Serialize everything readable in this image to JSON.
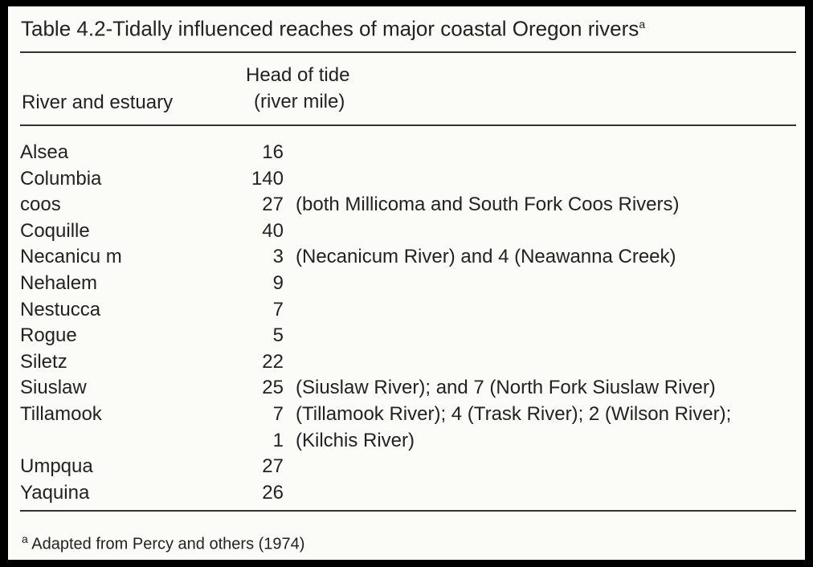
{
  "title": {
    "text": "Table 4.2-Tidally influenced reaches of major coastal Oregon rivers",
    "footnote_marker": "a"
  },
  "table": {
    "header": {
      "river": "River and estuary",
      "head_of_tide": [
        "Head of tide",
        "(river mile)"
      ]
    },
    "rows": [
      {
        "river": "Alsea",
        "mile": 16
      },
      {
        "river": "Columbia",
        "mile": 140
      },
      {
        "river": "coos",
        "mile": 27,
        "note": "(both Millicoma and South Fork Coos Rivers)"
      },
      {
        "river": "Coquille",
        "mile": 40
      },
      {
        "river": "Necanicu m",
        "mile": 3,
        "note": "(Necanicum River) and 4 (Neawanna Creek)"
      },
      {
        "river": "Nehalem",
        "mile": 9
      },
      {
        "river": "Nestucca",
        "mile": 7
      },
      {
        "river": "Rogue",
        "mile": 5
      },
      {
        "river": "Siletz",
        "mile": 22
      },
      {
        "river": "Siuslaw",
        "mile": 25,
        "note": "(Siuslaw River); and 7 (North Fork Siuslaw River)"
      },
      {
        "river": "Tillamook",
        "mile": 7,
        "note": "(Tillamook River); 4 (Trask River); 2 (Wilson River);"
      },
      {
        "mile": 1,
        "note": "(Kilchis River)"
      },
      {
        "river": "Umpqua",
        "mile": 27
      },
      {
        "river": "Yaquina",
        "mile": 26
      }
    ]
  },
  "footnote": {
    "marker": "a",
    "text": "Adapted from Percy and others (1974)"
  }
}
